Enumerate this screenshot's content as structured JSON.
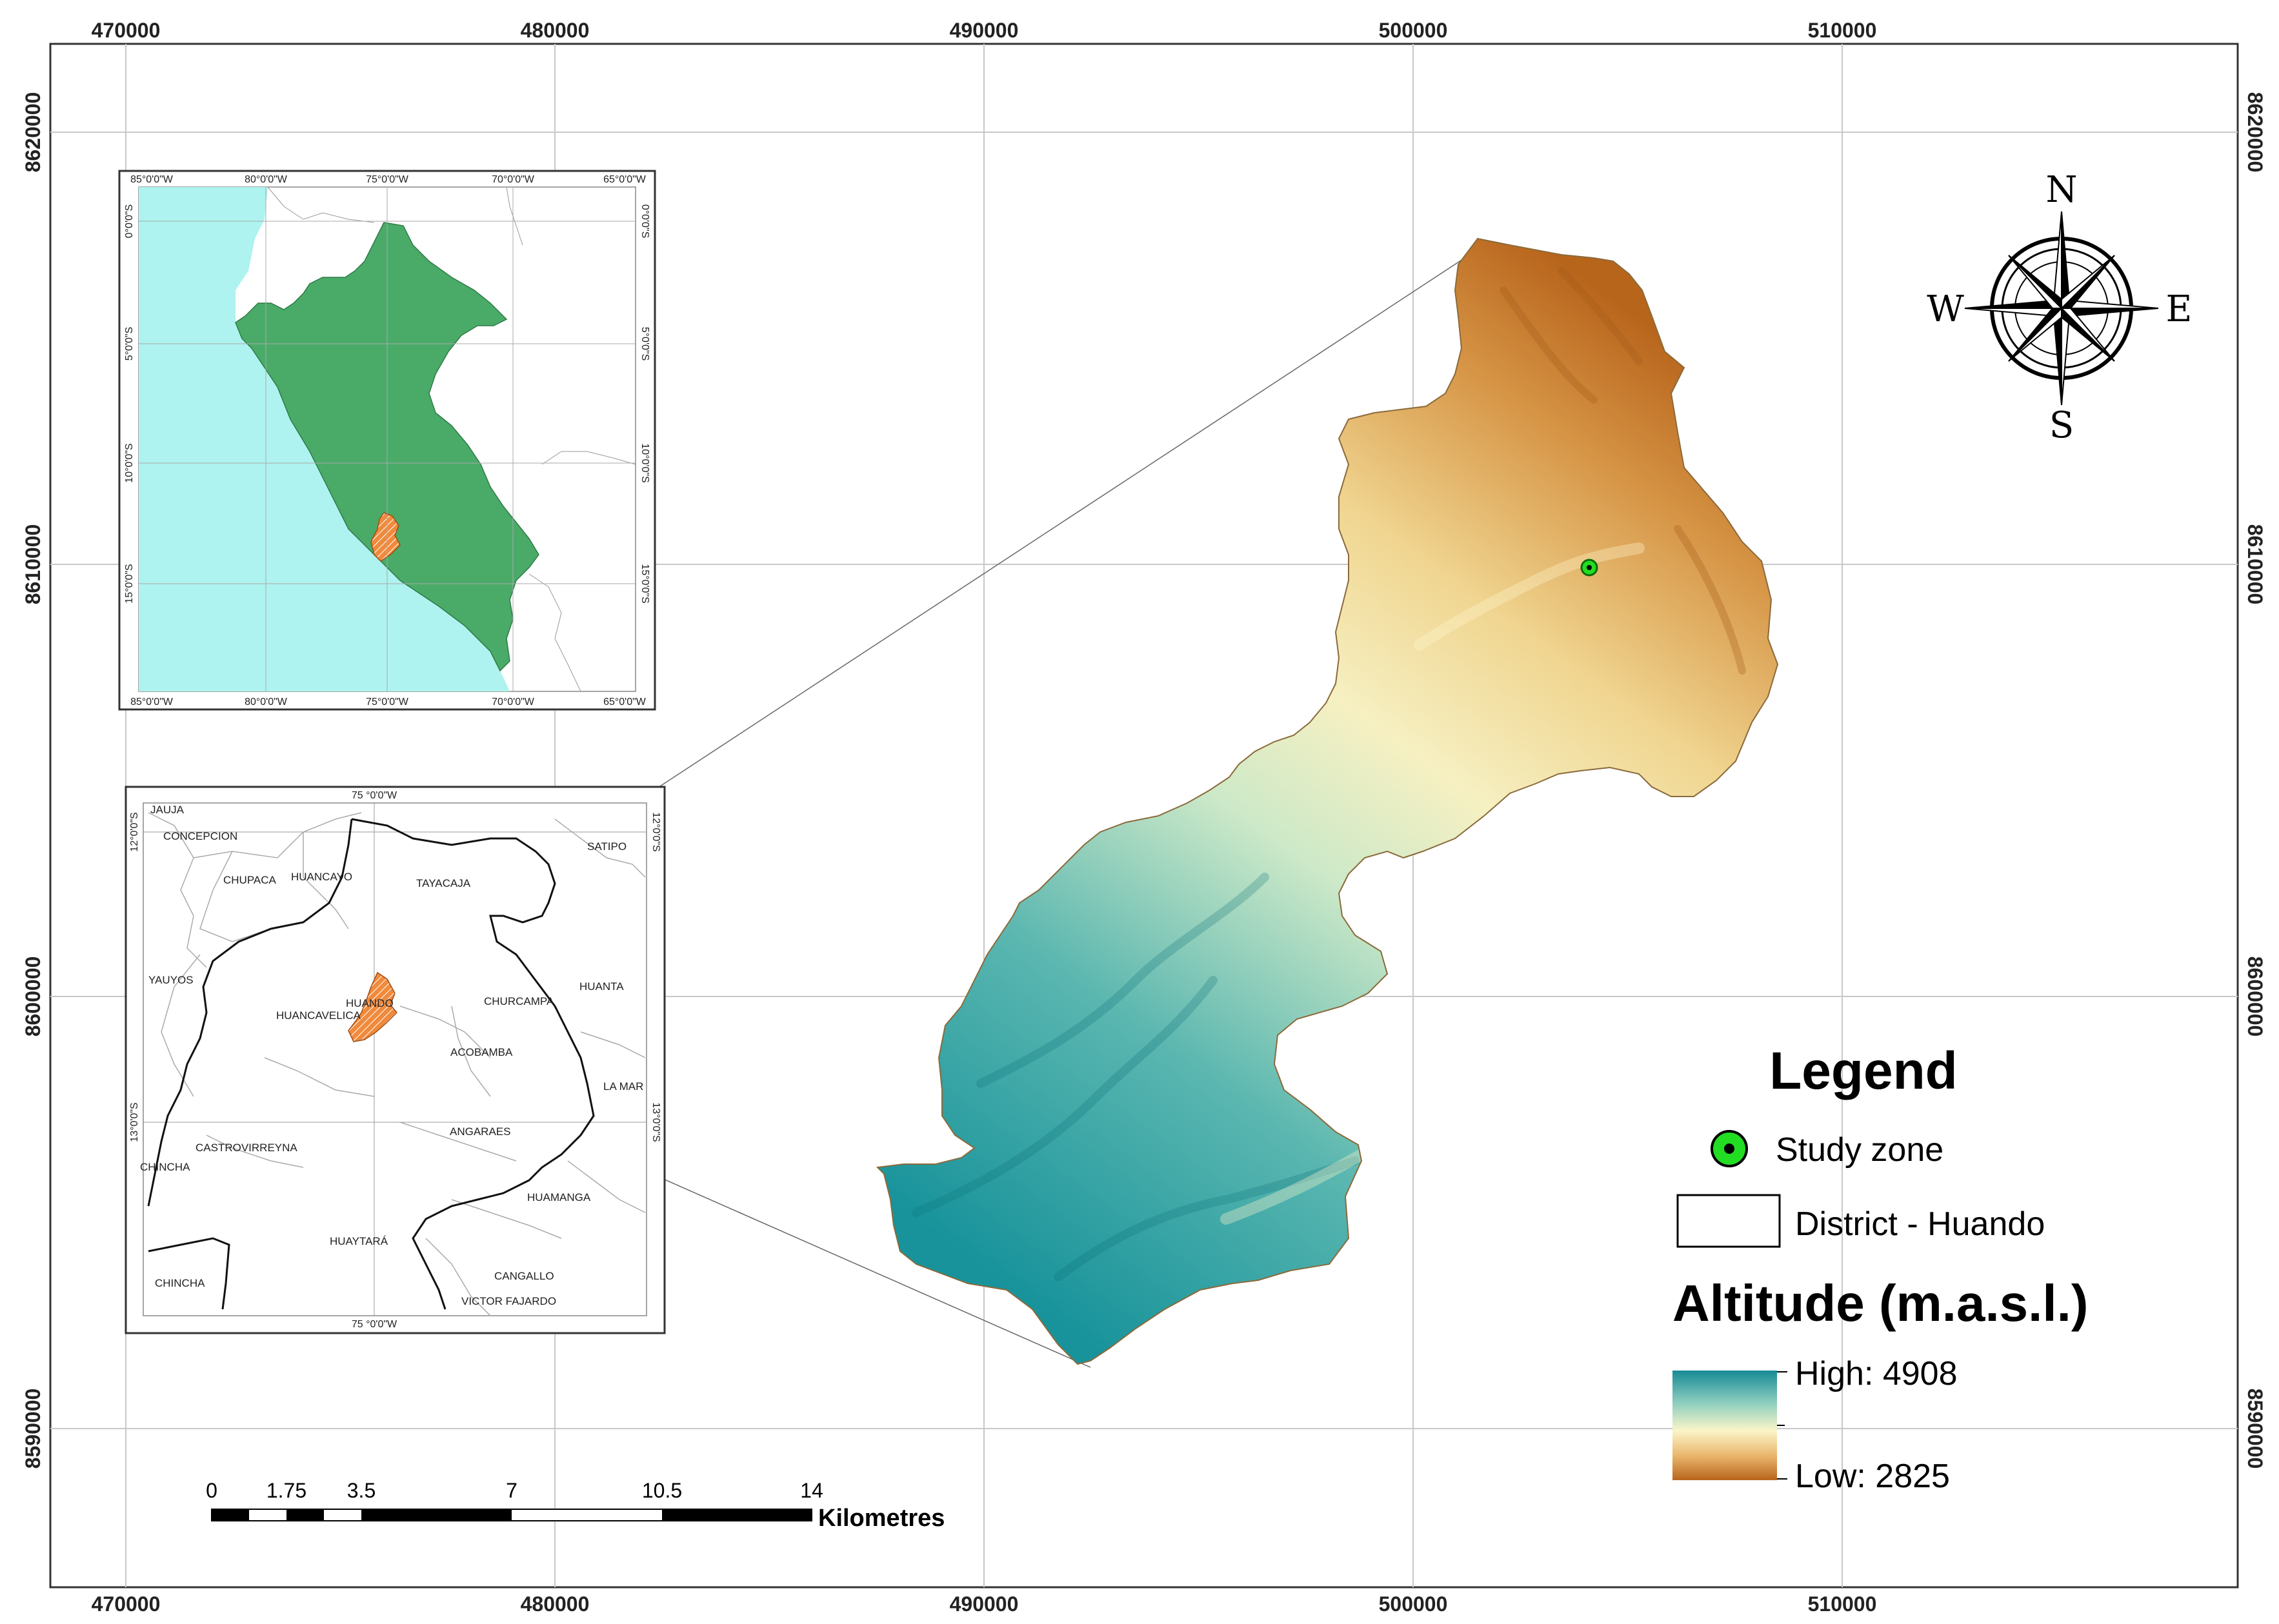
{
  "map": {
    "grid_easting": [
      "470000",
      "480000",
      "490000",
      "500000",
      "510000"
    ],
    "grid_northing": [
      "8620000",
      "8610000",
      "8600000",
      "8590000"
    ]
  },
  "compass": {
    "n": "N",
    "s": "S",
    "e": "E",
    "w": "W"
  },
  "inset_peru": {
    "lon_labels": [
      "85°0'0\"W",
      "80°0'0\"W",
      "75°0'0\"W",
      "70°0'0\"W",
      "65°0'0\"W"
    ],
    "lat_labels": [
      "0°0'0\"S",
      "5°0'0\"S",
      "10°0'0\"S",
      "15°0'0\"S"
    ],
    "colors": {
      "ocean": "#aef3ef",
      "country": "#4aab69",
      "highlight": "#f08a3c"
    }
  },
  "inset_region": {
    "lon_label": "75 °0'0\"W",
    "lat_labels": [
      "12°0'0\"S",
      "13°0'0\"S"
    ],
    "provinces": [
      "JAUJA",
      "CONCEPCION",
      "CHUPACA",
      "HUANCAYO",
      "TAYACAJA",
      "SATIPO",
      "YAUYOS",
      "HUANDO",
      "HUANCAVELICA",
      "CHURCAMPA",
      "HUANTA",
      "ACOBAMBA",
      "LA MAR",
      "CASTROVIRREYNA",
      "CHINCHA",
      "ANGARAES",
      "HUAMANGA",
      "HUAYTARÁ",
      "CANGALLO",
      "VICTOR FAJARDO",
      "CHINCHA"
    ]
  },
  "legend": {
    "title": "Legend",
    "study_zone": "Study zone",
    "district": "District - Huando",
    "altitude_title": "Altitude (m.a.s.l.)",
    "high": "High: 4908",
    "low": "Low: 2825",
    "colors": {
      "high": "#1a8f98",
      "mid": "#fbf5c8",
      "low": "#b8651c",
      "study_zone": "#22dd22"
    }
  },
  "scale_bar": {
    "ticks": [
      "0",
      "1.75",
      "3.5",
      "7",
      "10.5",
      "14"
    ],
    "unit": "Kilometres"
  }
}
